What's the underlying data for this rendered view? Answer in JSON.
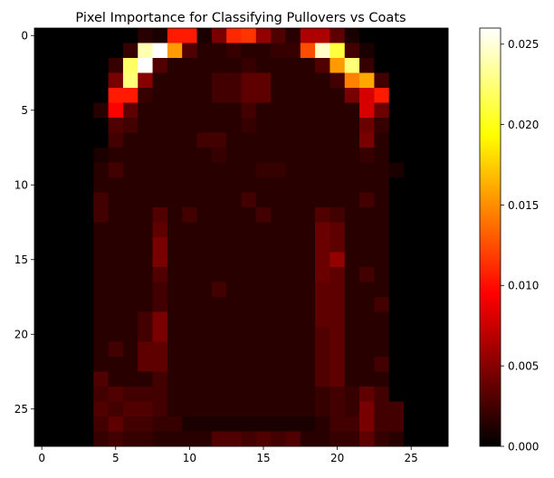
{
  "chart_data": {
    "type": "heatmap",
    "title": "Pixel Importance for Classifying Pullovers vs Coats",
    "xlabel": "",
    "ylabel": "",
    "rows": 28,
    "cols": 28,
    "xlim": [
      -0.5,
      27.5
    ],
    "ylim": [
      27.5,
      -0.5
    ],
    "x_ticks": [
      0,
      5,
      10,
      15,
      20,
      25
    ],
    "y_ticks": [
      0,
      5,
      10,
      15,
      20,
      25
    ],
    "x_tick_labels": [
      "0",
      "5",
      "10",
      "15",
      "20",
      "25"
    ],
    "y_tick_labels": [
      "0",
      "5",
      "10",
      "15",
      "20",
      "25"
    ],
    "colormap": "hot",
    "colormap_stops": [
      "#000000",
      "#ff0000",
      "#ffff00",
      "#ffffff"
    ],
    "vmin": 0,
    "vmax": 0.026,
    "colorbar_ticks": [
      0.0,
      0.005,
      0.01,
      0.015,
      0.02,
      0.025
    ],
    "colorbar_tick_labels": [
      "0.000",
      "0.005",
      "0.010",
      "0.015",
      "0.020",
      "0.025"
    ],
    "grid": false,
    "values": [
      [
        0,
        0,
        0,
        0,
        0,
        0,
        0,
        0.0015,
        0.001,
        0.0105,
        0.0105,
        0.001,
        0.0045,
        0.011,
        0.0115,
        0.0055,
        0.003,
        0.0015,
        0.0065,
        0.0065,
        0.0035,
        0.001,
        0,
        0,
        0,
        0,
        0,
        0
      ],
      [
        0,
        0,
        0,
        0,
        0,
        0,
        0.002,
        0.024,
        0.026,
        0.0155,
        0.003,
        0.0015,
        0.0015,
        0.002,
        0.0015,
        0.0015,
        0.002,
        0.002,
        0.0125,
        0.0245,
        0.021,
        0.0025,
        0.001,
        0,
        0,
        0,
        0,
        0
      ],
      [
        0,
        0,
        0,
        0,
        0,
        0.002,
        0.022,
        0.026,
        0.003,
        0.0015,
        0.0015,
        0.0015,
        0.0015,
        0.0015,
        0.002,
        0.0015,
        0.0015,
        0.0015,
        0.0015,
        0.003,
        0.0155,
        0.0225,
        0.002,
        0,
        0,
        0,
        0,
        0
      ],
      [
        0,
        0,
        0,
        0,
        0,
        0.0045,
        0.0225,
        0.005,
        0.0015,
        0.0015,
        0.0015,
        0.0015,
        0.0025,
        0.0025,
        0.0035,
        0.0035,
        0.0015,
        0.0015,
        0.0015,
        0.0015,
        0.0025,
        0.0145,
        0.016,
        0.0025,
        0,
        0,
        0,
        0
      ],
      [
        0,
        0,
        0,
        0,
        0,
        0.0105,
        0.0105,
        0.002,
        0.0015,
        0.0015,
        0.0015,
        0.0015,
        0.0025,
        0.0025,
        0.0035,
        0.0035,
        0.0015,
        0.0015,
        0.0015,
        0.0015,
        0.0015,
        0.0045,
        0.008,
        0.0105,
        0,
        0,
        0,
        0
      ],
      [
        0,
        0,
        0,
        0,
        0.0015,
        0.0095,
        0.0035,
        0.0015,
        0.0015,
        0.0015,
        0.0015,
        0.0015,
        0.0015,
        0.0015,
        0.0025,
        0.0015,
        0.0015,
        0.0015,
        0.0015,
        0.0015,
        0.0015,
        0.0015,
        0.008,
        0.004,
        0,
        0,
        0,
        0
      ],
      [
        0,
        0,
        0,
        0,
        0,
        0.003,
        0.0025,
        0.0015,
        0.0015,
        0.0015,
        0.0015,
        0.0015,
        0.0015,
        0.0015,
        0.002,
        0.0015,
        0.0015,
        0.0015,
        0.0015,
        0.0015,
        0.0015,
        0.0015,
        0.004,
        0.002,
        0,
        0,
        0,
        0
      ],
      [
        0,
        0,
        0,
        0,
        0,
        0.0025,
        0.0015,
        0.0015,
        0.0015,
        0.0015,
        0.0015,
        0.0025,
        0.0025,
        0.0015,
        0.0015,
        0.0015,
        0.0015,
        0.0015,
        0.0015,
        0.0015,
        0.0015,
        0.0015,
        0.0045,
        0.0015,
        0,
        0,
        0,
        0
      ],
      [
        0,
        0,
        0,
        0,
        0.001,
        0.0015,
        0.0015,
        0.0015,
        0.0015,
        0.0015,
        0.0015,
        0.0015,
        0.002,
        0.0015,
        0.0015,
        0.0015,
        0.0015,
        0.0015,
        0.0015,
        0.0015,
        0.0015,
        0.0015,
        0.002,
        0.0015,
        0,
        0,
        0,
        0
      ],
      [
        0,
        0,
        0,
        0,
        0.0015,
        0.0025,
        0.0015,
        0.0015,
        0.0015,
        0.0015,
        0.0015,
        0.0015,
        0.0015,
        0.0015,
        0.0015,
        0.002,
        0.002,
        0.0015,
        0.0015,
        0.0015,
        0.0015,
        0.0015,
        0.0015,
        0.0015,
        0.001,
        0,
        0,
        0
      ],
      [
        0,
        0,
        0,
        0,
        0.0015,
        0.0015,
        0.0015,
        0.0015,
        0.0015,
        0.0015,
        0.0015,
        0.0015,
        0.0015,
        0.0015,
        0.0015,
        0.0015,
        0.0015,
        0.0015,
        0.0015,
        0.0015,
        0.0015,
        0.0015,
        0.0015,
        0.0015,
        0,
        0,
        0,
        0
      ],
      [
        0,
        0,
        0,
        0,
        0.0025,
        0.0015,
        0.0015,
        0.0015,
        0.0015,
        0.0015,
        0.0015,
        0.0015,
        0.0015,
        0.0015,
        0.0025,
        0.0015,
        0.0015,
        0.0015,
        0.0015,
        0.0015,
        0.0015,
        0.0015,
        0.0025,
        0.0015,
        0,
        0,
        0,
        0
      ],
      [
        0,
        0,
        0,
        0,
        0.0025,
        0.0015,
        0.0015,
        0.0015,
        0.003,
        0.0015,
        0.0025,
        0.0015,
        0.0015,
        0.0015,
        0.0015,
        0.0025,
        0.0015,
        0.0015,
        0.0015,
        0.003,
        0.0025,
        0.0015,
        0.0015,
        0.0015,
        0,
        0,
        0,
        0
      ],
      [
        0,
        0,
        0,
        0,
        0.0015,
        0.0015,
        0.0015,
        0.0015,
        0.0035,
        0.0015,
        0.0015,
        0.0015,
        0.0015,
        0.0015,
        0.0015,
        0.0015,
        0.0015,
        0.0015,
        0.0015,
        0.004,
        0.0035,
        0.0015,
        0.0015,
        0.0015,
        0,
        0,
        0,
        0
      ],
      [
        0,
        0,
        0,
        0,
        0.0015,
        0.0015,
        0.0015,
        0.0015,
        0.0045,
        0.0015,
        0.0015,
        0.0015,
        0.0015,
        0.0015,
        0.0015,
        0.0015,
        0.0015,
        0.0015,
        0.0015,
        0.004,
        0.0035,
        0.0015,
        0.0015,
        0.0015,
        0,
        0,
        0,
        0
      ],
      [
        0,
        0,
        0,
        0,
        0.0015,
        0.0015,
        0.0015,
        0.0015,
        0.0045,
        0.0015,
        0.0015,
        0.0015,
        0.0015,
        0.0015,
        0.0015,
        0.0015,
        0.0015,
        0.0015,
        0.0015,
        0.004,
        0.0055,
        0.0015,
        0.0015,
        0.0015,
        0,
        0,
        0,
        0
      ],
      [
        0,
        0,
        0,
        0,
        0.0015,
        0.0015,
        0.0015,
        0.0015,
        0.003,
        0.0015,
        0.0015,
        0.0015,
        0.0015,
        0.0015,
        0.0015,
        0.0015,
        0.0015,
        0.0015,
        0.0015,
        0.004,
        0.0035,
        0.0015,
        0.0025,
        0.0015,
        0,
        0,
        0,
        0
      ],
      [
        0,
        0,
        0,
        0,
        0.0015,
        0.0015,
        0.0015,
        0.0015,
        0.0025,
        0.0015,
        0.0015,
        0.0015,
        0.0025,
        0.0015,
        0.0015,
        0.0015,
        0.0015,
        0.0015,
        0.0015,
        0.0035,
        0.0035,
        0.0015,
        0.0015,
        0.0015,
        0,
        0,
        0,
        0
      ],
      [
        0,
        0,
        0,
        0,
        0.0015,
        0.0015,
        0.0015,
        0.0015,
        0.0025,
        0.0015,
        0.0015,
        0.0015,
        0.0015,
        0.0015,
        0.0015,
        0.0015,
        0.0015,
        0.0015,
        0.0015,
        0.0035,
        0.0035,
        0.0015,
        0.0015,
        0.0025,
        0,
        0,
        0,
        0
      ],
      [
        0,
        0,
        0,
        0,
        0.0015,
        0.0015,
        0.0015,
        0.0025,
        0.0045,
        0.0015,
        0.0015,
        0.0015,
        0.0015,
        0.0015,
        0.0015,
        0.0015,
        0.0015,
        0.0015,
        0.0015,
        0.0035,
        0.0035,
        0.0015,
        0.0015,
        0.0015,
        0,
        0,
        0,
        0
      ],
      [
        0,
        0,
        0,
        0,
        0.0015,
        0.0015,
        0.0015,
        0.0025,
        0.0045,
        0.0015,
        0.0015,
        0.0015,
        0.0015,
        0.0015,
        0.0015,
        0.0015,
        0.0015,
        0.0015,
        0.0015,
        0.003,
        0.0035,
        0.0015,
        0.0015,
        0.0015,
        0,
        0,
        0,
        0
      ],
      [
        0,
        0,
        0,
        0,
        0.0015,
        0.0025,
        0.0015,
        0.0035,
        0.0035,
        0.0015,
        0.0015,
        0.0015,
        0.0015,
        0.0015,
        0.0015,
        0.0015,
        0.0015,
        0.0015,
        0.0015,
        0.003,
        0.0035,
        0.0015,
        0.0015,
        0.0015,
        0,
        0,
        0,
        0
      ],
      [
        0,
        0,
        0,
        0,
        0.0015,
        0.0015,
        0.0015,
        0.0035,
        0.0035,
        0.0015,
        0.0015,
        0.0015,
        0.0015,
        0.0015,
        0.0015,
        0.0015,
        0.0015,
        0.0015,
        0.0015,
        0.003,
        0.0035,
        0.0015,
        0.0015,
        0.0025,
        0,
        0,
        0,
        0
      ],
      [
        0,
        0,
        0,
        0,
        0.003,
        0.0015,
        0.0015,
        0.0015,
        0.0025,
        0.0015,
        0.0015,
        0.0015,
        0.0015,
        0.0015,
        0.0015,
        0.0015,
        0.0015,
        0.0015,
        0.0015,
        0.003,
        0.0035,
        0.0015,
        0.0015,
        0.0015,
        0,
        0,
        0,
        0
      ],
      [
        0,
        0,
        0,
        0,
        0.0025,
        0.003,
        0.0025,
        0.0025,
        0.0025,
        0.0015,
        0.0015,
        0.0015,
        0.0015,
        0.0015,
        0.0015,
        0.0015,
        0.0015,
        0.0015,
        0.0015,
        0.002,
        0.0025,
        0.002,
        0.0035,
        0.0025,
        0,
        0,
        0,
        0
      ],
      [
        0,
        0,
        0,
        0,
        0.003,
        0.0025,
        0.003,
        0.003,
        0.0025,
        0.0015,
        0.0015,
        0.0015,
        0.0015,
        0.0015,
        0.0015,
        0.0015,
        0.0015,
        0.0015,
        0.0015,
        0.002,
        0.0025,
        0.002,
        0.0045,
        0.0025,
        0.0025,
        0,
        0,
        0
      ],
      [
        0,
        0,
        0,
        0,
        0.0025,
        0.0035,
        0.0025,
        0.0025,
        0.002,
        0.002,
        0.001,
        0.001,
        0.001,
        0.001,
        0.001,
        0.001,
        0.001,
        0.001,
        0.001,
        0.0015,
        0.0025,
        0.0025,
        0.0045,
        0.0025,
        0.0025,
        0,
        0,
        0
      ],
      [
        0,
        0,
        0,
        0,
        0.002,
        0.0025,
        0.002,
        0.002,
        0.0015,
        0.0015,
        0.0015,
        0.0015,
        0.003,
        0.003,
        0.0025,
        0.003,
        0.0025,
        0.003,
        0.0015,
        0.0015,
        0.002,
        0.002,
        0.0035,
        0.002,
        0.0015,
        0,
        0,
        0
      ]
    ]
  }
}
